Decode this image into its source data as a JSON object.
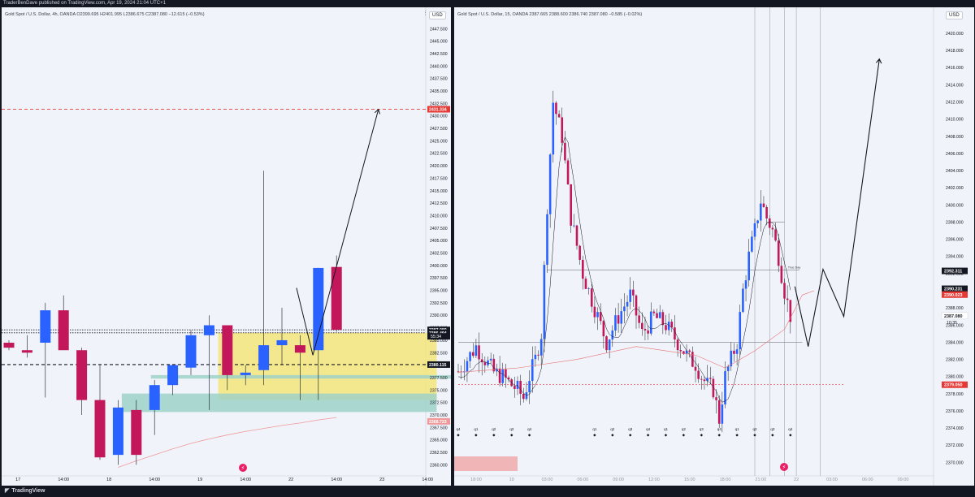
{
  "header": {
    "text": "TraderBenDave published on TradingView.com, Apr 19, 2024 21:04 UTC+1"
  },
  "footer": {
    "logo_icon": "tradingview-logo-icon",
    "brand": "TradingView"
  },
  "colors": {
    "bull": "#2962ff",
    "bear": "#c2185b",
    "zone_yellow": "#f4e57a",
    "zone_teal": "#9fd1c9",
    "target_red": "#e53935"
  },
  "left": {
    "legend": "Gold Spot / U.S. Dollar, 4h, OANDA  O2399.695  H2401.995  L2386.675  C2387.080  −12.615 (−0.53%)",
    "currency": "USD",
    "y_ticks": [
      "2447.500",
      "2445.000",
      "2442.500",
      "2440.000",
      "2437.500",
      "2435.000",
      "2432.500",
      "2430.000",
      "2427.500",
      "2425.000",
      "2422.500",
      "2420.000",
      "2417.500",
      "2415.000",
      "2412.500",
      "2410.000",
      "2407.500",
      "2405.000",
      "2402.500",
      "2400.000",
      "2397.500",
      "2395.000",
      "2392.500",
      "2390.000",
      "2387.500",
      "2385.000",
      "2382.500",
      "2380.000",
      "2377.500",
      "2375.000",
      "2372.500",
      "2370.000",
      "2367.500",
      "2365.000",
      "2362.500",
      "2360.000"
    ],
    "y_range": [
      2358.6,
      2449.5
    ],
    "x_ticks": [
      "17",
      "14:00",
      "18",
      "14:00",
      "19",
      "14:00",
      "22",
      "14:00",
      "23",
      "14:00"
    ],
    "x_tick_bars": [
      0.5,
      3,
      5.5,
      8,
      10.5,
      13,
      15.5,
      18,
      20.5,
      23
    ],
    "candles": [
      {
        "o": 2384.5,
        "h": 2385.0,
        "l": 2383.0,
        "c": 2383.5
      },
      {
        "o": 2383.0,
        "h": 2386.0,
        "l": 2381.5,
        "c": 2382.5
      },
      {
        "o": 2384.5,
        "h": 2392.5,
        "l": 2373.5,
        "c": 2391.0
      },
      {
        "o": 2391.0,
        "h": 2394.0,
        "l": 2383.5,
        "c": 2383.0
      },
      {
        "o": 2383.0,
        "h": 2383.5,
        "l": 2370.0,
        "c": 2373.0
      },
      {
        "o": 2373.0,
        "h": 2380.0,
        "l": 2361.0,
        "c": 2361.5
      },
      {
        "o": 2362.0,
        "h": 2373.0,
        "l": 2360.0,
        "c": 2371.5
      },
      {
        "o": 2371.0,
        "h": 2373.0,
        "l": 2360.0,
        "c": 2362.0
      },
      {
        "o": 2371.0,
        "h": 2377.0,
        "l": 2366.0,
        "c": 2376.0
      },
      {
        "o": 2376.0,
        "h": 2380.0,
        "l": 2374.0,
        "c": 2380.0
      },
      {
        "o": 2379.5,
        "h": 2387.0,
        "l": 2378.0,
        "c": 2386.0
      },
      {
        "o": 2386.0,
        "h": 2390.0,
        "l": 2371.0,
        "c": 2388.0
      },
      {
        "o": 2388.0,
        "h": 2388.0,
        "l": 2375.0,
        "c": 2378.0
      },
      {
        "o": 2378.0,
        "h": 2380.0,
        "l": 2376.0,
        "c": 2378.5
      },
      {
        "o": 2379.0,
        "h": 2419.0,
        "l": 2376.0,
        "c": 2384.0
      },
      {
        "o": 2384.0,
        "h": 2391.5,
        "l": 2380.0,
        "c": 2385.0
      },
      {
        "o": 2384.0,
        "h": 2386.0,
        "l": 2373.0,
        "c": 2382.5
      },
      {
        "o": 2383.0,
        "h": 2399.5,
        "l": 2373.0,
        "c": 2399.5
      },
      {
        "o": 2399.7,
        "h": 2402.0,
        "l": 2386.7,
        "c": 2387.1
      }
    ],
    "ma": {
      "from_bar": 6,
      "values": [
        2359.5,
        2360.8,
        2362.0,
        2363.2,
        2364.3,
        2365.2,
        2366.0,
        2366.7,
        2367.3,
        2367.9,
        2368.4,
        2369.0,
        2369.5
      ]
    },
    "zones": [
      {
        "color": "zone_yellow",
        "from_bar": 11.5,
        "to_bar": 23.5,
        "top": 2386.5,
        "bottom": 2373.0
      },
      {
        "color": "zone_teal",
        "from_bar": 6.2,
        "to_bar": 23.5,
        "top": 2374.3,
        "bottom": 2370.6
      },
      {
        "color": "zone_teal",
        "from_bar": 7.8,
        "to_bar": 25.0,
        "top": 2378.0,
        "bottom": 2377.3
      }
    ],
    "levels": [
      {
        "price": 2431.334,
        "label": "2431.334",
        "style": "dashed",
        "color": "#e53935",
        "label_bg": "#e53935"
      },
      {
        "price": 2387.08,
        "label": "2387.080",
        "style": "dotted",
        "color": "#131722",
        "label_bg": "#131722"
      },
      {
        "price": 2386.494,
        "label": "2386.494",
        "style": "dotted",
        "color": "#131722",
        "label_bg": "#131722"
      },
      {
        "price": 2380.115,
        "label": "2380.115",
        "style": "dashed",
        "color": "#131722",
        "label_bg": "#131722"
      },
      {
        "price": 2368.723,
        "label": "2368.723",
        "style": "none",
        "color": "#ef9a9a",
        "label_bg": "#ef9a9a"
      }
    ],
    "countdown": "55:34",
    "projection": [
      [
        15.8,
        2395.5
      ],
      [
        16.7,
        2382.0
      ],
      [
        20.3,
        2431.3
      ]
    ]
  },
  "right": {
    "legend": "Gold Spot / U.S. Dollar, 15, OANDA  2387.665  2388.600  2386.740  2387.080  −0.585 (−0.02%)",
    "currency": "USD",
    "y_ticks": [
      "2420.000",
      "2418.000",
      "2416.000",
      "2414.000",
      "2412.000",
      "2410.000",
      "2408.000",
      "2406.000",
      "2404.000",
      "2402.000",
      "2400.000",
      "2398.000",
      "2396.000",
      "2394.000",
      "2392.000",
      "2390.000",
      "2388.000",
      "2386.000",
      "2384.000",
      "2382.000",
      "2380.000",
      "2378.000",
      "2376.000",
      "2374.000",
      "2372.000",
      "2370.000"
    ],
    "y_range": [
      2368.9,
      2421.7
    ],
    "x_ticks": [
      "18:00",
      "19",
      "03:00",
      "06:00",
      "09:00",
      "12:00",
      "15:00",
      "18:00",
      "21:00",
      "22",
      "03:00",
      "06:00",
      "09:00"
    ],
    "x_tick_bars": [
      6,
      18,
      30,
      42,
      54,
      66,
      78,
      90,
      102,
      114,
      126,
      138,
      150
    ],
    "quarter_labels": [
      "q4",
      "q1",
      "q2",
      "q3",
      "q4",
      "q1",
      "q2",
      "q3",
      "q4",
      "q1",
      "q2",
      "q3",
      "q4",
      "q1",
      "q2",
      "q3",
      "q4"
    ],
    "quarter_bars": [
      0,
      6,
      12,
      18,
      24,
      46,
      52,
      58,
      64,
      70,
      76,
      82,
      88,
      94,
      100,
      106,
      112
    ],
    "key_prices": [
      2380.6,
      2382.0,
      2383.5,
      2382.0,
      2380.5,
      2380.0,
      2379.0,
      2378.5,
      2377.5,
      2380.0,
      2382.0,
      2385.0,
      2400.0,
      2412.0,
      2408.0,
      2398.5,
      2392.0,
      2388.0,
      2384.0,
      2387.0,
      2389.5,
      2385.0,
      2387.0,
      2386.0,
      2384.0,
      2383.0,
      2382.0,
      2381.5,
      2380.0,
      2379.0,
      2378.5,
      2375.0,
      2380.0,
      2382.0,
      2384.0,
      2390.0,
      2394.0,
      2397.0,
      2400.5,
      2398.5,
      2397.0,
      2394.0,
      2390.0,
      2387.1
    ],
    "key_bars": [
      0,
      3,
      6,
      9,
      12,
      15,
      18,
      20,
      22,
      24,
      26,
      28,
      30,
      32,
      35,
      38,
      42,
      46,
      50,
      54,
      58,
      62,
      66,
      70,
      74,
      76,
      78,
      80,
      82,
      84,
      86,
      88,
      90,
      92,
      94,
      96,
      98,
      100,
      102,
      104,
      106,
      108,
      110,
      112
    ],
    "ma_fast_offset": -0.6,
    "ma_slow": [
      [
        0,
        2380.5
      ],
      [
        20,
        2381.0
      ],
      [
        40,
        2382.0
      ],
      [
        60,
        2383.5
      ],
      [
        80,
        2382.5
      ],
      [
        90,
        2381.0
      ],
      [
        100,
        2383.0
      ],
      [
        110,
        2385.5
      ],
      [
        116,
        2389.5
      ],
      [
        120,
        2390.0
      ]
    ],
    "levels": [
      {
        "price": 2392.311,
        "label": "2392.311",
        "label_bg": "#131722"
      },
      {
        "price": 2390.231,
        "label": "2390.231",
        "label_bg": "#131722"
      },
      {
        "price": 2390.023,
        "label": "2390.023",
        "label_bg": "#e53935"
      },
      {
        "price": 2387.08,
        "label": "2387.080",
        "label_bg": "#ffffff"
      },
      {
        "price": 2379.05,
        "label": "2379.050",
        "label_bg": "#e53935"
      }
    ],
    "countdown": "10:35",
    "hlines": [
      {
        "price": 2392.4,
        "from_bar": 30,
        "to_bar": 115,
        "label": "True Day"
      },
      {
        "price": 2384.0,
        "from_bar": 0,
        "to_bar": 116,
        "label": ""
      },
      {
        "price": 2379.05,
        "from_bar": 0,
        "to_bar": 130,
        "label": ""
      },
      {
        "price": 2398.0,
        "from_bar": 104,
        "to_bar": 110,
        "label": ""
      }
    ],
    "vlines_bars": [
      100,
      105,
      110,
      114,
      122
    ],
    "projection": [
      [
        113.5,
        2390.5
      ],
      [
        118,
        2383.5
      ],
      [
        123,
        2392.5
      ],
      [
        130,
        2387.0
      ],
      [
        142,
        2417.0
      ]
    ]
  }
}
